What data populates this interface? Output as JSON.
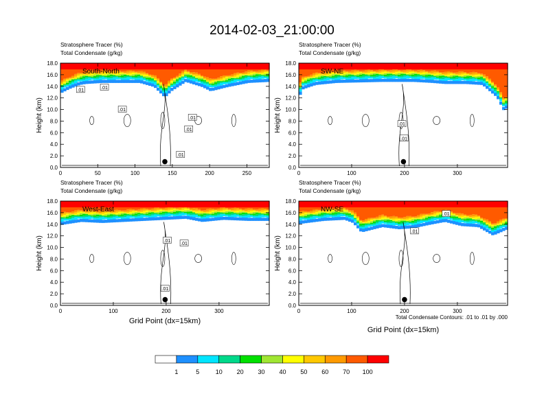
{
  "figure": {
    "title": "2014-02-03_21:00:00",
    "header_line1": "Stratosphere Tracer   (%)",
    "header_line2": "Total Condensate   (g/kg)",
    "ylabel": "Height (km)",
    "xlabel": "Grid Point (dx=15km)",
    "contour_note": "Total Condensate Contours: .01 to .01 by .000"
  },
  "colors": {
    "levels": [
      "#ffffff",
      "#1e90ff",
      "#00e5ff",
      "#00d98a",
      "#00e000",
      "#a0e632",
      "#ffff00",
      "#ffc800",
      "#ff9a00",
      "#ff5a00",
      "#ff0000"
    ]
  },
  "colorbar": {
    "labels": [
      "1",
      "5",
      "10",
      "20",
      "30",
      "40",
      "50",
      "60",
      "70",
      "100"
    ]
  },
  "chart_data": [
    {
      "type": "heatmap",
      "panel": "South-North",
      "label": "South-North",
      "xlim": [
        0,
        280
      ],
      "ylim": [
        0,
        18
      ],
      "xticks": [
        "0",
        "50",
        "100",
        "150",
        "200",
        "250"
      ],
      "xtick_values": [
        0,
        50,
        100,
        150,
        200,
        250
      ],
      "yticks": [
        "0.0",
        "2.0",
        "4.0",
        "6.0",
        "8.0",
        "10.0",
        "12.0",
        "14.0",
        "16.0",
        "18.0"
      ],
      "marker": {
        "x": 140,
        "y": 1.0
      },
      "contour_label_text": ".01",
      "contour_labels": [
        {
          "x": 27,
          "y": 13.4
        },
        {
          "x": 59,
          "y": 13.8
        },
        {
          "x": 83,
          "y": 10.0
        },
        {
          "x": 177,
          "y": 8.6
        },
        {
          "x": 172,
          "y": 6.6
        },
        {
          "x": 161,
          "y": 2.2
        }
      ]
    },
    {
      "type": "heatmap",
      "panel": "SW-NE",
      "label": "SW-NE",
      "xlim": [
        0,
        395
      ],
      "ylim": [
        0,
        18
      ],
      "xticks": [
        "0",
        "100",
        "200",
        "300"
      ],
      "xtick_values": [
        0,
        100,
        200,
        300
      ],
      "yticks": [
        "0.0",
        "2.0",
        "4.0",
        "6.0",
        "8.0",
        "10.0",
        "12.0",
        "14.0",
        "16.0",
        "18.0"
      ],
      "marker": {
        "x": 198,
        "y": 1.0
      },
      "contour_label_text": ".01",
      "contour_labels": [
        {
          "x": 195,
          "y": 7.5
        },
        {
          "x": 199,
          "y": 5.0
        }
      ]
    },
    {
      "type": "heatmap",
      "panel": "West-East",
      "label": "West-East",
      "xlim": [
        0,
        395
      ],
      "ylim": [
        0,
        18
      ],
      "xticks": [
        "0",
        "100",
        "200",
        "300"
      ],
      "xtick_values": [
        0,
        100,
        200,
        300
      ],
      "yticks": [
        "0.0",
        "2.0",
        "4.0",
        "6.0",
        "8.0",
        "10.0",
        "12.0",
        "14.0",
        "16.0",
        "18.0"
      ],
      "marker": {
        "x": 198,
        "y": 1.0
      },
      "contour_label_text": ".01",
      "contour_labels": [
        {
          "x": 202,
          "y": 11.2
        },
        {
          "x": 234,
          "y": 10.7
        },
        {
          "x": 198,
          "y": 2.9
        }
      ]
    },
    {
      "type": "heatmap",
      "panel": "NW-SE",
      "label": "NW-SE",
      "xlim": [
        0,
        395
      ],
      "ylim": [
        0,
        18
      ],
      "xticks": [
        "0",
        "100",
        "200",
        "300"
      ],
      "xtick_values": [
        0,
        100,
        200,
        300
      ],
      "yticks": [
        "0.0",
        "2.0",
        "4.0",
        "6.0",
        "8.0",
        "10.0",
        "12.0",
        "14.0",
        "16.0",
        "18.0"
      ],
      "marker": {
        "x": 200,
        "y": 1.0
      },
      "contour_label_text": ".01",
      "contour_labels": [
        {
          "x": 279,
          "y": 15.8
        },
        {
          "x": 219,
          "y": 12.8
        }
      ]
    }
  ]
}
